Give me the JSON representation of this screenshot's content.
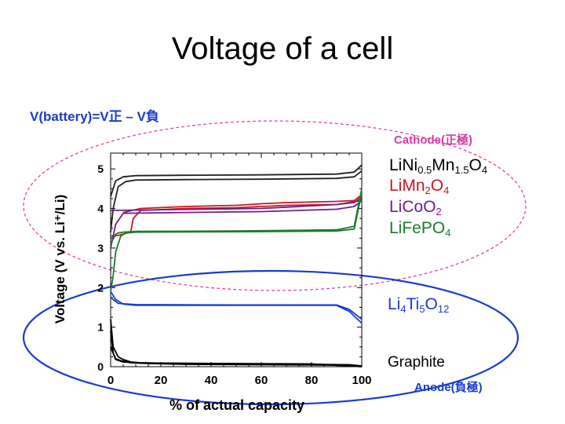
{
  "slide": {
    "title": "Voltage of a cell"
  },
  "equation": {
    "text": "V(battery)=V正 – V負"
  },
  "cathode_label": "Cathode(正極)",
  "anode_label": "Anode(負極)",
  "materials": [
    {
      "text": "LiNi0.5Mn1.5O4",
      "color": "#000000"
    },
    {
      "text": "LiMn2O4",
      "color": "#d0141c"
    },
    {
      "text": "LiCoO2",
      "color": "#6a1f8a"
    },
    {
      "text": "LiFePO4",
      "color": "#1e7a2e"
    },
    {
      "text": "Li4Ti5O12",
      "color": "#1a3ccc"
    },
    {
      "text": "Graphite",
      "color": "#000000"
    }
  ],
  "colors": {
    "ellipse_cathode": "#d83aa6",
    "ellipse_anode": "#1a3ccc",
    "axis_label": "#000000"
  },
  "chart_data": {
    "type": "line",
    "xlabel": "% of actual capacity",
    "ylabel": "Voltage (V vs. Li⁺/Li)",
    "xlim": [
      0,
      100
    ],
    "ylim": [
      0,
      5.4
    ],
    "xticks": [
      0,
      20,
      40,
      60,
      80,
      100
    ],
    "yticks": [
      0,
      1,
      2,
      3,
      4,
      5
    ],
    "series": [
      {
        "name": "LiNi0.5Mn1.5O4",
        "color": "#222222",
        "curves": [
          {
            "x": [
              0,
              1,
              3,
              6,
              10,
              30,
              60,
              90,
              97,
              100
            ],
            "y": [
              3.4,
              4.0,
              4.55,
              4.68,
              4.72,
              4.73,
              4.74,
              4.76,
              4.8,
              4.95
            ]
          },
          {
            "x": [
              0,
              2,
              5,
              10,
              30,
              60,
              90,
              97,
              100
            ],
            "y": [
              4.3,
              4.7,
              4.8,
              4.83,
              4.84,
              4.85,
              4.87,
              4.92,
              5.1
            ]
          }
        ]
      },
      {
        "name": "LiMn2O4",
        "color": "#d0141c",
        "curves": [
          {
            "x": [
              0,
              3,
              8,
              9,
              12,
              30,
              50,
              60,
              70,
              90,
              97,
              100
            ],
            "y": [
              3.3,
              3.32,
              3.4,
              3.75,
              3.95,
              4.0,
              4.02,
              4.05,
              4.08,
              4.1,
              4.15,
              4.3
            ]
          },
          {
            "x": [
              5,
              12,
              30,
              50,
              60,
              70,
              90,
              97,
              100
            ],
            "y": [
              3.9,
              4.0,
              4.05,
              4.08,
              4.12,
              4.15,
              4.18,
              4.2,
              4.35
            ]
          }
        ]
      },
      {
        "name": "LiCoO2",
        "color": "#6a1f8a",
        "curves": [
          {
            "x": [
              0,
              2,
              5,
              30,
              60,
              90,
              97,
              100
            ],
            "y": [
              3.0,
              3.6,
              3.88,
              3.9,
              3.92,
              3.98,
              4.05,
              4.2
            ]
          },
          {
            "x": [
              0,
              60,
              90,
              100
            ],
            "y": [
              3.95,
              4.0,
              4.1,
              4.2
            ]
          }
        ]
      },
      {
        "name": "LiFePO4",
        "color": "#1e7a2e",
        "curves": [
          {
            "x": [
              0,
              1,
              2,
              4,
              6,
              10,
              50,
              90,
              97,
              100
            ],
            "y": [
              1.9,
              2.3,
              2.9,
              3.3,
              3.38,
              3.4,
              3.41,
              3.43,
              3.48,
              4.4
            ]
          },
          {
            "x": [
              0,
              2,
              3,
              5,
              10,
              50,
              90,
              97,
              100
            ],
            "y": [
              3.1,
              3.35,
              3.38,
              3.4,
              3.42,
              3.43,
              3.46,
              3.55,
              4.5
            ]
          }
        ]
      },
      {
        "name": "Li4Ti5O12",
        "color": "#1a3ccc",
        "curves": [
          {
            "x": [
              0,
              2,
              5,
              10,
              50,
              90,
              95,
              100
            ],
            "y": [
              1.9,
              1.7,
              1.58,
              1.55,
              1.55,
              1.55,
              1.4,
              1.1
            ]
          },
          {
            "x": [
              0,
              3,
              10,
              50,
              90,
              95,
              100
            ],
            "y": [
              1.75,
              1.6,
              1.57,
              1.56,
              1.56,
              1.45,
              1.2
            ]
          }
        ]
      },
      {
        "name": "Graphite",
        "color": "#000000",
        "curves": [
          {
            "x": [
              0,
              1,
              3,
              5,
              8,
              12,
              20,
              40,
              60,
              80,
              95,
              100
            ],
            "y": [
              1.2,
              0.5,
              0.25,
              0.18,
              0.12,
              0.1,
              0.09,
              0.08,
              0.07,
              0.06,
              0.05,
              0.02
            ]
          },
          {
            "x": [
              0,
              1,
              2,
              4,
              8,
              15,
              30,
              60,
              90,
              100
            ],
            "y": [
              0.9,
              0.35,
              0.2,
              0.15,
              0.1,
              0.08,
              0.06,
              0.05,
              0.04,
              0.01
            ]
          },
          {
            "x": [
              0,
              2,
              5,
              10,
              20,
              50,
              80,
              100
            ],
            "y": [
              0.5,
              0.18,
              0.12,
              0.1,
              0.09,
              0.08,
              0.07,
              0.0
            ]
          }
        ]
      }
    ]
  }
}
